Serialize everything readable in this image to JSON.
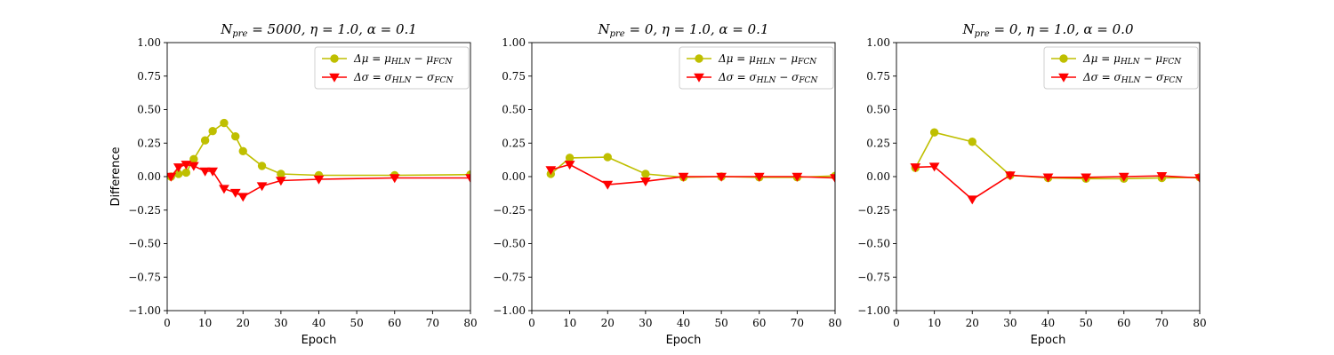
{
  "chart_data": [
    {
      "type": "line",
      "title": "N_pre = 5000, η = 1.0, α = 0.1",
      "title_parts": [
        [
          "N",
          "pre",
          " = 5000, η = 1.0, α = 0.1"
        ]
      ],
      "xlabel": "Epoch",
      "ylabel": "Difference",
      "xlim": [
        0,
        80
      ],
      "ylim": [
        -1.0,
        1.0
      ],
      "xticks": [
        "0",
        "10",
        "20",
        "30",
        "40",
        "50",
        "60",
        "70",
        "80"
      ],
      "yticks": [
        "−1.00",
        "−0.75",
        "−0.50",
        "−0.25",
        "0.00",
        "0.25",
        "0.50",
        "0.75",
        "1.00"
      ],
      "grid": false,
      "legend_position": "top-right",
      "series": [
        {
          "name": "Δμ = μ_HLN − μ_FCN",
          "legend_parts": [
            "Δμ = μ",
            "HLN",
            " − μ",
            "FCN"
          ],
          "color": "#bfbf00",
          "marker": "circle",
          "x": [
            1,
            3,
            5,
            7,
            10,
            12,
            15,
            18,
            20,
            25,
            30,
            40,
            60,
            80
          ],
          "y": [
            0.0,
            0.02,
            0.03,
            0.13,
            0.27,
            0.34,
            0.4,
            0.3,
            0.19,
            0.08,
            0.02,
            0.01,
            0.01,
            0.015
          ]
        },
        {
          "name": "Δσ = σ_HLN − σ_FCN",
          "legend_parts": [
            "Δσ = σ",
            "HLN",
            " − σ",
            "FCN"
          ],
          "color": "#ff0000",
          "marker": "triangle-down",
          "x": [
            1,
            3,
            5,
            7,
            10,
            12,
            15,
            18,
            20,
            25,
            30,
            40,
            60,
            80
          ],
          "y": [
            0.0,
            0.07,
            0.09,
            0.08,
            0.04,
            0.04,
            -0.09,
            -0.12,
            -0.15,
            -0.07,
            -0.03,
            -0.02,
            -0.01,
            -0.01
          ]
        }
      ]
    },
    {
      "type": "line",
      "title": "N_pre = 0, η = 1.0, α = 0.1",
      "title_parts": [
        [
          "N",
          "pre",
          " = 0, η = 1.0, α = 0.1"
        ]
      ],
      "xlabel": "Epoch",
      "ylabel": "",
      "xlim": [
        0,
        80
      ],
      "ylim": [
        -1.0,
        1.0
      ],
      "xticks": [
        "0",
        "10",
        "20",
        "30",
        "40",
        "50",
        "60",
        "70",
        "80"
      ],
      "yticks": [
        "−1.00",
        "−0.75",
        "−0.50",
        "−0.25",
        "0.00",
        "0.25",
        "0.50",
        "0.75",
        "1.00"
      ],
      "grid": false,
      "legend_position": "top-right",
      "series": [
        {
          "name": "Δμ = μ_HLN − μ_FCN",
          "legend_parts": [
            "Δμ = μ",
            "HLN",
            " − μ",
            "FCN"
          ],
          "color": "#bfbf00",
          "marker": "circle",
          "x": [
            5,
            10,
            20,
            30,
            40,
            50,
            60,
            70,
            80
          ],
          "y": [
            0.02,
            0.14,
            0.145,
            0.02,
            -0.005,
            0.0,
            -0.005,
            -0.005,
            0.005
          ]
        },
        {
          "name": "Δσ = σ_HLN − σ_FCN",
          "legend_parts": [
            "Δσ = σ",
            "HLN",
            " − σ",
            "FCN"
          ],
          "color": "#ff0000",
          "marker": "triangle-down",
          "x": [
            5,
            10,
            20,
            30,
            40,
            50,
            60,
            70,
            80
          ],
          "y": [
            0.05,
            0.09,
            -0.06,
            -0.035,
            0.0,
            0.0,
            0.0,
            0.0,
            -0.01
          ]
        }
      ]
    },
    {
      "type": "line",
      "title": "N_pre = 0, η = 1.0, α = 0.0",
      "title_parts": [
        [
          "N",
          "pre",
          " = 0, η = 1.0, α = 0.0"
        ]
      ],
      "xlabel": "Epoch",
      "ylabel": "",
      "xlim": [
        0,
        80
      ],
      "ylim": [
        -1.0,
        1.0
      ],
      "xticks": [
        "0",
        "10",
        "20",
        "30",
        "40",
        "50",
        "60",
        "70",
        "80"
      ],
      "yticks": [
        "−1.00",
        "−0.75",
        "−0.50",
        "−0.25",
        "0.00",
        "0.25",
        "0.50",
        "0.75",
        "1.00"
      ],
      "grid": false,
      "legend_position": "top-right",
      "series": [
        {
          "name": "Δμ = μ_HLN − μ_FCN",
          "legend_parts": [
            "Δμ = μ",
            "HLN",
            " − μ",
            "FCN"
          ],
          "color": "#bfbf00",
          "marker": "circle",
          "x": [
            5,
            10,
            20,
            30,
            40,
            50,
            60,
            70,
            80
          ],
          "y": [
            0.065,
            0.33,
            0.26,
            0.01,
            -0.01,
            -0.015,
            -0.015,
            -0.01,
            -0.005
          ]
        },
        {
          "name": "Δσ = σ_HLN − σ_FCN",
          "legend_parts": [
            "Δσ = σ",
            "HLN",
            " − σ",
            "FCN"
          ],
          "color": "#ff0000",
          "marker": "triangle-down",
          "x": [
            5,
            10,
            20,
            30,
            40,
            50,
            60,
            70,
            80
          ],
          "y": [
            0.07,
            0.075,
            -0.17,
            0.01,
            -0.005,
            -0.005,
            0.0,
            0.005,
            -0.01
          ]
        }
      ]
    }
  ]
}
